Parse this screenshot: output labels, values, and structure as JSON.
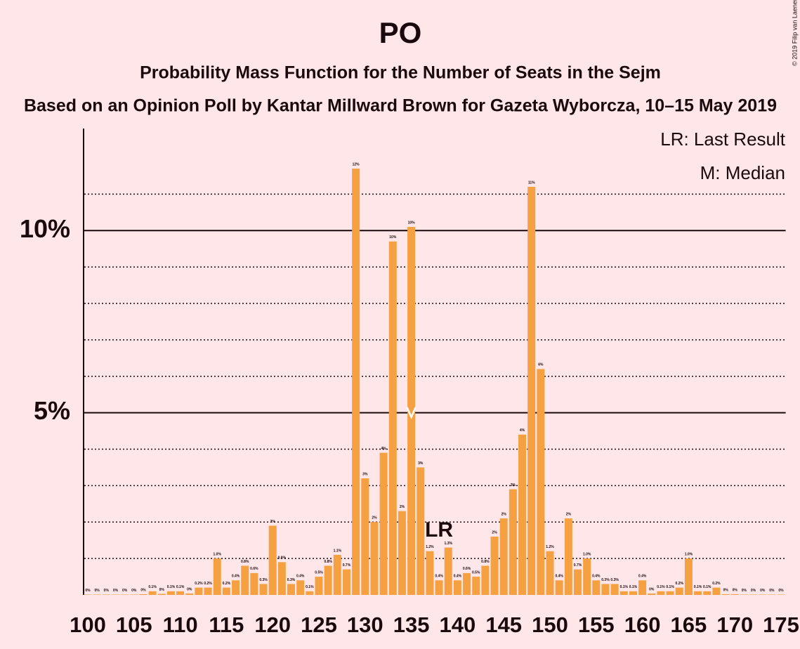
{
  "chart_data": {
    "type": "bar",
    "title": "PO",
    "subtitle": "Probability Mass Function for the Number of Seats in the Sejm",
    "subtitle2": "Based on an Opinion Poll by Kantar Millward Brown for Gazeta Wyborcza, 10–15 May 2019",
    "copyright": "© 2019 Filip van Laenen",
    "legend": [
      "LR: Last Result",
      "M: Median"
    ],
    "color": "#f5a142",
    "x": [
      100,
      101,
      102,
      103,
      104,
      105,
      106,
      107,
      108,
      109,
      110,
      111,
      112,
      113,
      114,
      115,
      116,
      117,
      118,
      119,
      120,
      121,
      122,
      123,
      124,
      125,
      126,
      127,
      128,
      129,
      130,
      131,
      132,
      133,
      134,
      135,
      136,
      137,
      138,
      139,
      140,
      141,
      142,
      143,
      144,
      145,
      146,
      147,
      148,
      149,
      150,
      151,
      152,
      153,
      154,
      155,
      156,
      157,
      158,
      159,
      160,
      161,
      162,
      163,
      164,
      165,
      166,
      167,
      168,
      169,
      170,
      171,
      172,
      173,
      174,
      175
    ],
    "values": [
      0.01,
      0.01,
      0.01,
      0.01,
      0.01,
      0.01,
      0.02,
      0.1,
      0.03,
      0.1,
      0.1,
      0.04,
      0.2,
      0.2,
      1.0,
      0.2,
      0.4,
      0.8,
      0.6,
      0.3,
      1.9,
      0.9,
      0.3,
      0.4,
      0.1,
      0.5,
      0.8,
      1.1,
      0.7,
      11.7,
      3.2,
      2.0,
      3.9,
      9.7,
      2.3,
      10.1,
      3.5,
      1.2,
      0.4,
      1.3,
      0.4,
      0.6,
      0.5,
      0.8,
      1.6,
      2.1,
      2.9,
      4.4,
      11.2,
      6.2,
      1.2,
      0.4,
      2.1,
      0.7,
      1.0,
      0.4,
      0.3,
      0.3,
      0.1,
      0.1,
      0.4,
      0.04,
      0.1,
      0.1,
      0.2,
      1.0,
      0.1,
      0.1,
      0.2,
      0.02,
      0.02,
      0.01,
      0.01,
      0.01,
      0.01,
      0.01
    ],
    "value_labels": [
      "0%",
      "0%",
      "0%",
      "0%",
      "0%",
      "0%",
      "0%",
      "0.1%",
      "0%",
      "0.1%",
      "0.1%",
      "0%",
      "0.2%",
      "0.2%",
      "1.0%",
      "0.2%",
      "0.4%",
      "0.8%",
      "0.6%",
      "0.3%",
      "2%",
      "0.9%",
      "0.3%",
      "0.4%",
      "0.1%",
      "0.5%",
      "0.8%",
      "1.1%",
      "0.7%",
      "12%",
      "3%",
      "2%",
      "4%",
      "10%",
      "2%",
      "10%",
      "3%",
      "1.2%",
      "0.4%",
      "1.3%",
      "0.4%",
      "0.6%",
      "0.5%",
      "0.8%",
      "2%",
      "2%",
      "3%",
      "4%",
      "11%",
      "6%",
      "1.2%",
      "0.4%",
      "2%",
      "0.7%",
      "1.0%",
      "0.4%",
      "0.3%",
      "0.3%",
      "0.1%",
      "0.1%",
      "0.4%",
      "0%",
      "0.1%",
      "0.1%",
      "0.2%",
      "1.0%",
      "0.1%",
      "0.1%",
      "0.2%",
      "0%",
      "0%",
      "0%",
      "0%",
      "0%",
      "0%",
      "0%"
    ],
    "xlim": [
      99.5,
      175.5
    ],
    "xticks": [
      100,
      105,
      110,
      115,
      120,
      125,
      130,
      135,
      140,
      145,
      150,
      155,
      160,
      165,
      170,
      175
    ],
    "ylim": [
      0,
      12.8
    ],
    "yticks": [
      {
        "value": 5,
        "label": "5%"
      },
      {
        "value": 10,
        "label": "10%"
      }
    ],
    "minor_yticks": [
      1,
      2,
      3,
      4,
      6,
      7,
      8,
      9,
      11
    ],
    "last_result": {
      "label": "LR",
      "x": 138
    },
    "median": 135
  }
}
